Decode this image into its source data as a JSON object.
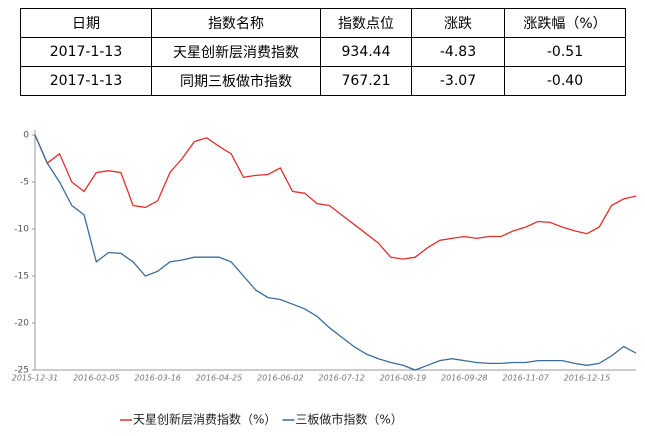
{
  "table": {
    "header": [
      "日期",
      "指数名称",
      "指数点位",
      "涨跌",
      "涨跌幅（%）"
    ],
    "rows": [
      [
        "2017-1-13",
        "天星创新层消费指数",
        "934.44",
        "-4.83",
        "-0.51"
      ],
      [
        "2017-1-13",
        "同期三板做市指数",
        "767.21",
        "-3.07",
        "-0.40"
      ]
    ]
  },
  "chart_data": {
    "type": "line",
    "categories": [
      "2015-12-31",
      null,
      null,
      null,
      null,
      "2016-02-05",
      null,
      null,
      null,
      null,
      "2016-03-16",
      null,
      null,
      null,
      null,
      "2016-04-25",
      null,
      null,
      null,
      null,
      "2016-06-02",
      null,
      null,
      null,
      null,
      "2016-07-12",
      null,
      null,
      null,
      null,
      "2016-08-19",
      null,
      null,
      null,
      null,
      "2016-09-28",
      null,
      null,
      null,
      null,
      "2016-11-07",
      null,
      null,
      null,
      null,
      "2016-12-15",
      null,
      null,
      null,
      null
    ],
    "series": [
      {
        "name": "天星创新层消费指数（%）",
        "color": "#e0302c",
        "values": [
          0,
          -3,
          -2,
          -5,
          -6,
          -4,
          -3.8,
          -4,
          -7.5,
          -7.7,
          -7,
          -4,
          -2.5,
          -0.7,
          -0.3,
          -1.2,
          -2,
          -4.5,
          -4.3,
          -4.2,
          -3.5,
          -6,
          -6.2,
          -7.3,
          -7.5,
          -8.5,
          -9.5,
          -10.5,
          -11.5,
          -13,
          -13.2,
          -13,
          -12,
          -11.2,
          -11,
          -10.8,
          -11,
          -10.8,
          -10.8,
          -10.2,
          -9.8,
          -9.2,
          -9.3,
          -9.8,
          -10.2,
          -10.5,
          -9.8,
          -7.5,
          -6.8,
          -6.5
        ]
      },
      {
        "name": "三板做市指数（%）",
        "color": "#3a6d99",
        "values": [
          0,
          -3,
          -5,
          -7.5,
          -8.5,
          -13.5,
          -12.5,
          -12.6,
          -13.5,
          -15,
          -14.5,
          -13.5,
          -13.3,
          -13,
          -13,
          -13,
          -13.5,
          -15,
          -16.5,
          -17.3,
          -17.5,
          -18,
          -18.5,
          -19.3,
          -20.5,
          -21.5,
          -22.5,
          -23.3,
          -23.8,
          -24.2,
          -24.5,
          -25,
          -24.5,
          -24,
          -23.8,
          -24,
          -24.2,
          -24.3,
          -24.3,
          -24.2,
          -24.2,
          -24,
          -24,
          -24,
          -24.3,
          -24.5,
          -24.3,
          -23.5,
          -22.5,
          -23.2
        ]
      }
    ],
    "ylim": [
      -25,
      0
    ],
    "yticks": [
      0,
      -5,
      -10,
      -15,
      -20,
      -25
    ],
    "grid": false,
    "legend": "bottom"
  }
}
